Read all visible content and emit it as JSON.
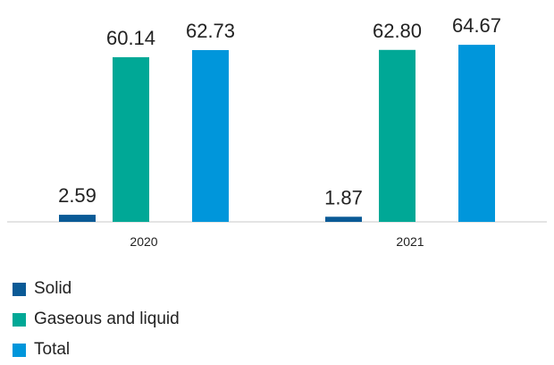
{
  "chart_data": {
    "type": "bar",
    "categories": [
      "2020",
      "2021"
    ],
    "series": [
      {
        "name": "Solid",
        "color": "#0A5A96",
        "values": [
          2.59,
          1.87
        ]
      },
      {
        "name": "Gaseous and liquid",
        "color": "#00A896",
        "values": [
          60.14,
          62.8
        ]
      },
      {
        "name": "Total",
        "color": "#0096DB",
        "values": [
          62.73,
          64.67
        ]
      }
    ],
    "value_labels": [
      [
        "2.59",
        "1.87"
      ],
      [
        "60.14",
        "62.80"
      ],
      [
        "62.73",
        "64.67"
      ]
    ],
    "ylim": [
      0,
      75
    ],
    "grid": false,
    "legend_position": "bottom-left",
    "title": "",
    "xlabel": "",
    "ylabel": ""
  }
}
